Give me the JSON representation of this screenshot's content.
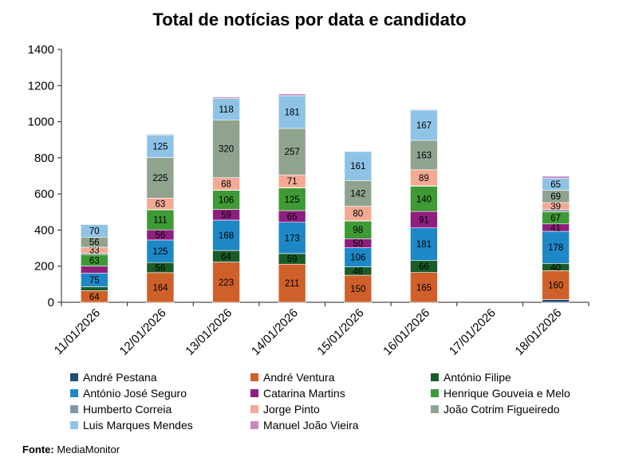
{
  "chart_data": {
    "type": "bar",
    "stacked": true,
    "title": "Total de notícias por data e candidato",
    "xlabel": "",
    "ylabel": "",
    "ylim": [
      0,
      1400
    ],
    "yticks": [
      0,
      200,
      400,
      600,
      800,
      1000,
      1200,
      1400
    ],
    "grid": false,
    "legend_position": "bottom",
    "categories": [
      "11/01/2026",
      "12/01/2026",
      "13/01/2026",
      "14/01/2026",
      "15/01/2026",
      "16/01/2026",
      "17/01/2026",
      "18/01/2026"
    ],
    "series": [
      {
        "name": "André Pestana",
        "color": "#1f4e79",
        "values": [
          0,
          0,
          0,
          0,
          0,
          0,
          0,
          15
        ],
        "labels": [
          null,
          null,
          null,
          null,
          null,
          null,
          null,
          null
        ]
      },
      {
        "name": "André Ventura",
        "color": "#d0602a",
        "values": [
          64,
          164,
          223,
          211,
          150,
          165,
          0,
          160
        ],
        "labels": [
          "64",
          "164",
          "223",
          "211",
          "150",
          "165",
          null,
          "160"
        ]
      },
      {
        "name": "António Filipe",
        "color": "#1a5c28",
        "values": [
          22,
          56,
          64,
          59,
          46,
          66,
          0,
          40
        ],
        "labels": [
          null,
          "56",
          "64",
          "59",
          "46",
          "66",
          null,
          "40"
        ]
      },
      {
        "name": "António José Seguro",
        "color": "#1e88c7",
        "values": [
          75,
          125,
          168,
          173,
          106,
          181,
          0,
          178
        ],
        "labels": [
          "75",
          "125",
          "168",
          "173",
          "106",
          "181",
          null,
          "178"
        ]
      },
      {
        "name": "Catarina Martins",
        "color": "#8e1f7f",
        "values": [
          40,
          56,
          59,
          65,
          50,
          91,
          0,
          41
        ],
        "labels": [
          null,
          "56",
          "59",
          "65",
          "50",
          "91",
          null,
          "41"
        ]
      },
      {
        "name": "Henrique Gouveia e Melo",
        "color": "#3e9a34",
        "values": [
          63,
          111,
          106,
          125,
          98,
          140,
          0,
          67
        ],
        "labels": [
          "63",
          "111",
          "106",
          "125",
          "98",
          "140",
          null,
          "67"
        ]
      },
      {
        "name": "Humberto Correia",
        "color": "#8196a6",
        "values": [
          8,
          2,
          2,
          2,
          2,
          2,
          0,
          12
        ],
        "labels": [
          null,
          null,
          null,
          null,
          null,
          null,
          null,
          null
        ]
      },
      {
        "name": "Jorge Pinto",
        "color": "#f3a993",
        "values": [
          33,
          63,
          68,
          71,
          80,
          89,
          0,
          39
        ],
        "labels": [
          "33",
          "63",
          "68",
          "71",
          "80",
          "89",
          null,
          "39"
        ]
      },
      {
        "name": "João Cotrim Figueiredo",
        "color": "#8fa38f",
        "values": [
          56,
          225,
          320,
          257,
          142,
          163,
          0,
          69
        ],
        "labels": [
          "56",
          "225",
          "320",
          "257",
          "142",
          "163",
          null,
          "69"
        ]
      },
      {
        "name": "Luis Marques Mendes",
        "color": "#8ec3e6",
        "values": [
          70,
          125,
          118,
          181,
          161,
          167,
          0,
          65
        ],
        "labels": [
          "70",
          "125",
          "118",
          "181",
          "161",
          "167",
          null,
          "65"
        ]
      },
      {
        "name": "Manuel João Vieira",
        "color": "#c589c2",
        "values": [
          2,
          4,
          8,
          10,
          3,
          4,
          0,
          12
        ],
        "labels": [
          null,
          null,
          null,
          null,
          null,
          null,
          null,
          null
        ]
      }
    ]
  },
  "source": {
    "label": "Fonte:",
    "text": "MediaMonitor"
  }
}
